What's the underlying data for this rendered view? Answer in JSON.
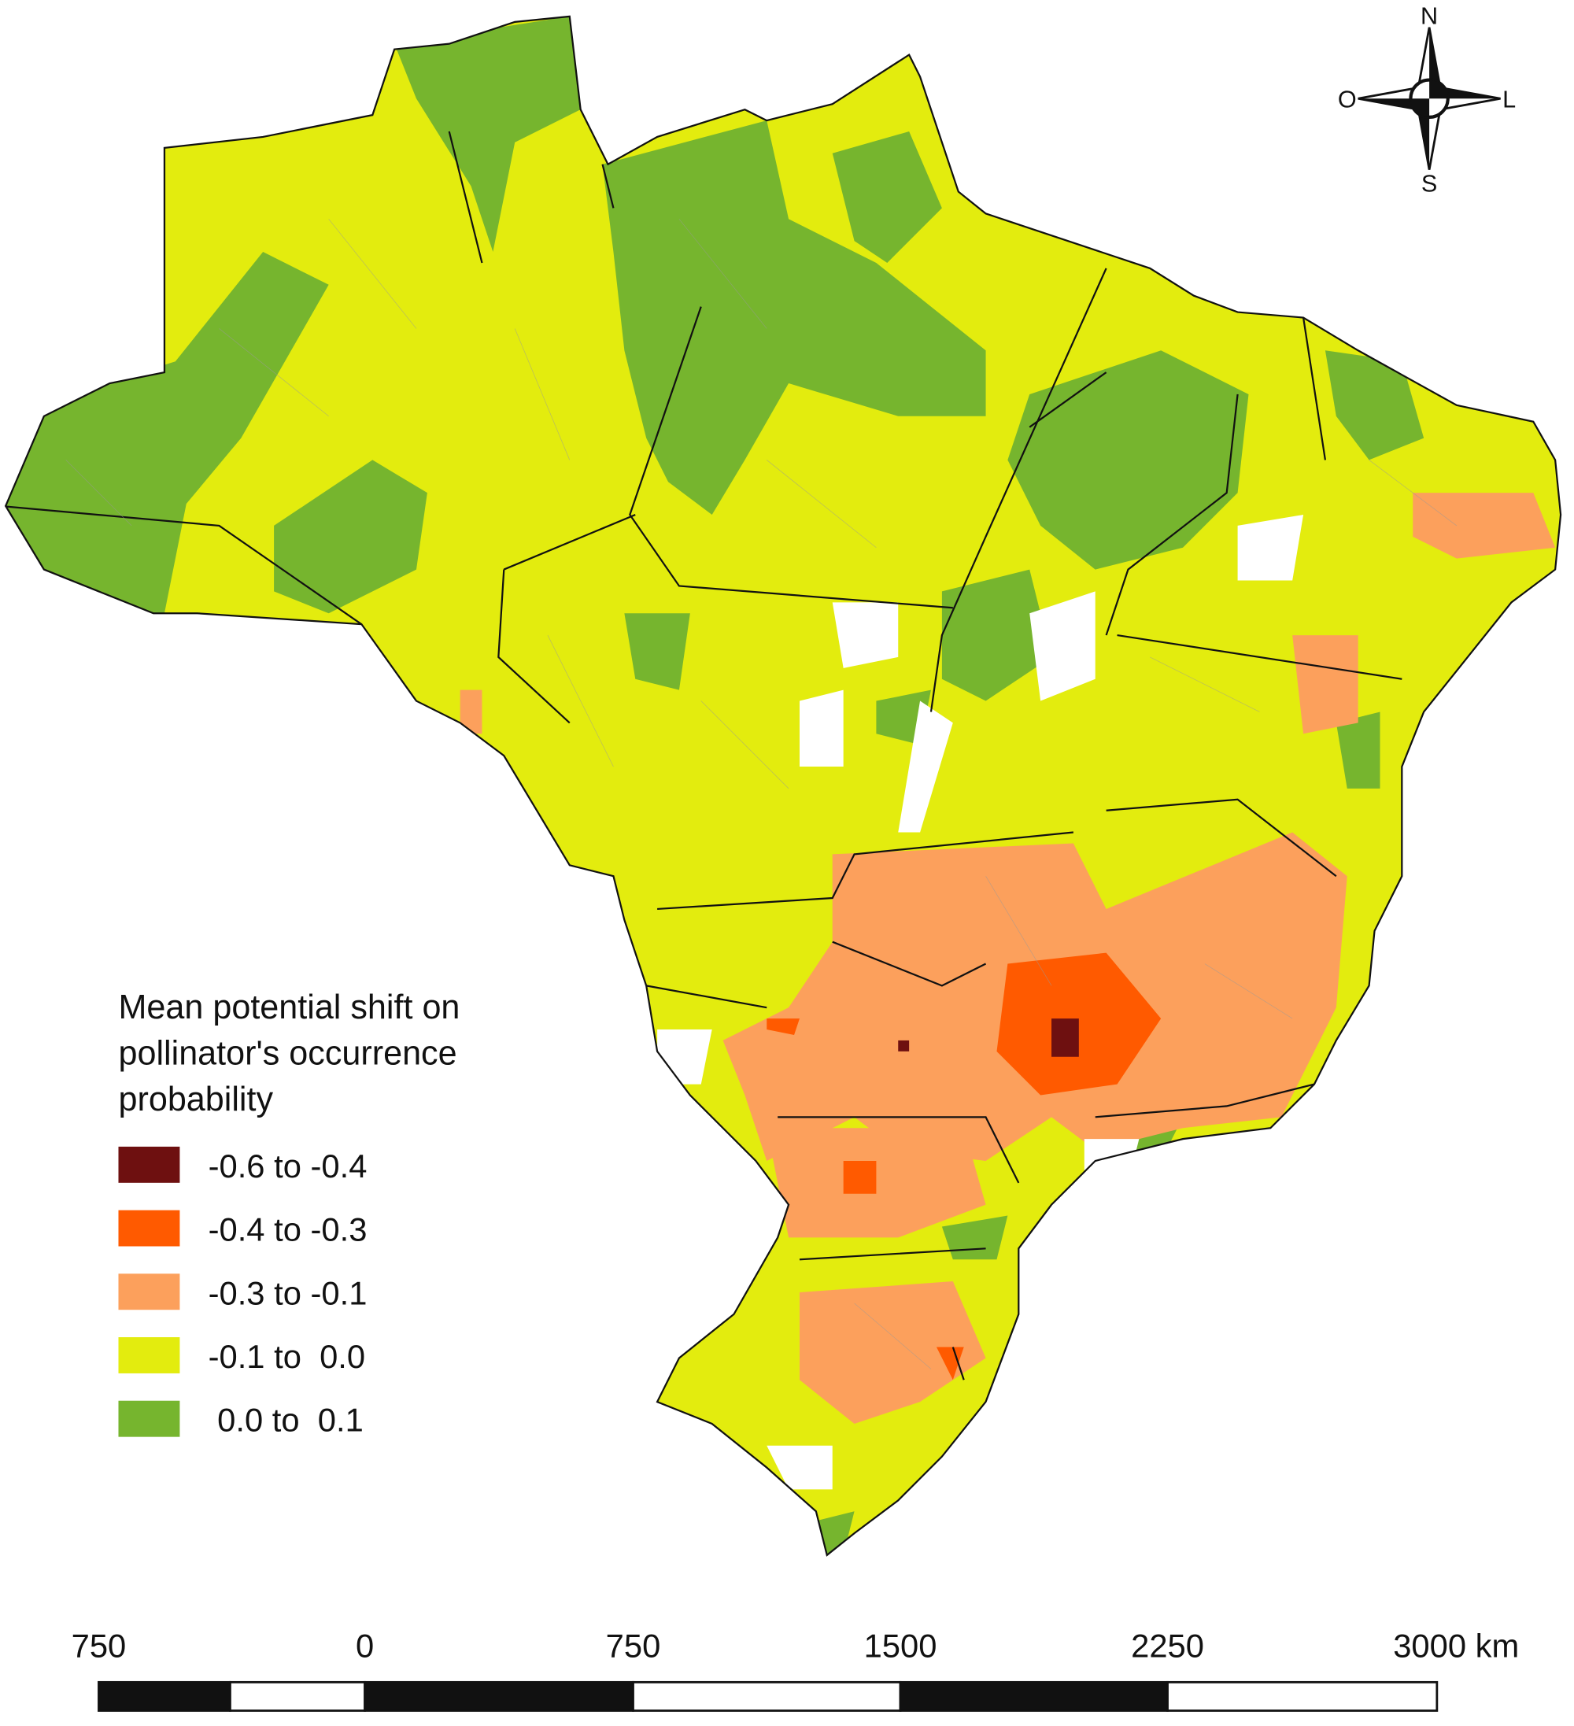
{
  "legend": {
    "title": [
      "Mean potential shift on",
      "pollinator's occurrence",
      "probability"
    ],
    "items": [
      {
        "label": "-0.6 to -0.4",
        "color": "#6e1010"
      },
      {
        "label": "-0.4 to -0.3",
        "color": "#ff5a00"
      },
      {
        "label": "-0.3 to -0.1",
        "color": "#fca05c"
      },
      {
        "label": "-0.1 to  0.0",
        "color": "#e3ec0e"
      },
      {
        "label": " 0.0 to  0.1",
        "color": "#76b52e"
      }
    ]
  },
  "compass": {
    "north": "N",
    "west": "O",
    "east": "L",
    "south": "S"
  },
  "scale_bar": {
    "labels": [
      "750",
      "0",
      "750",
      "1500",
      "2250",
      "3000 km"
    ]
  }
}
